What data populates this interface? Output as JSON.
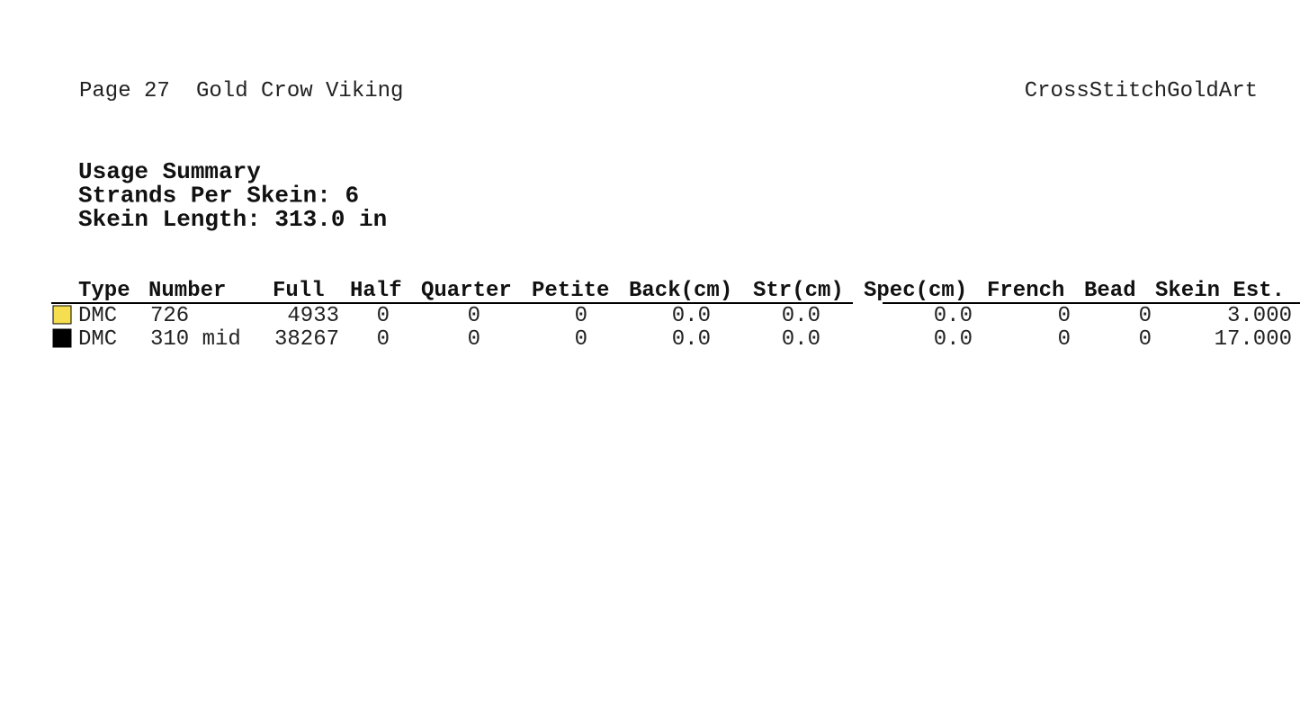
{
  "header": {
    "page": "Page 27",
    "title": "Gold Crow Viking",
    "brand": "CrossStitchGoldArt"
  },
  "summary": [
    "Usage Summary",
    "Strands Per Skein: 6",
    "Skein Length: 313.0 in"
  ],
  "table": {
    "columns": [
      "Type",
      "Number",
      "Full",
      "Half",
      "Quarter",
      "Petite",
      "Back(cm)",
      "Str(cm)",
      "Spec(cm)",
      "French",
      "Bead",
      "Skein Est."
    ],
    "rows": [
      {
        "color": "#f5de4f",
        "cells": [
          "DMC",
          "726",
          "4933",
          "0",
          "0",
          "0",
          "0.0",
          "0.0",
          "0.0",
          "0",
          "0",
          "3.000"
        ]
      },
      {
        "color": "#000000",
        "cells": [
          "DMC",
          "310 mid",
          "38267",
          "0",
          "0",
          "0",
          "0.0",
          "0.0",
          "0.0",
          "0",
          "0",
          "17.000"
        ]
      }
    ]
  }
}
